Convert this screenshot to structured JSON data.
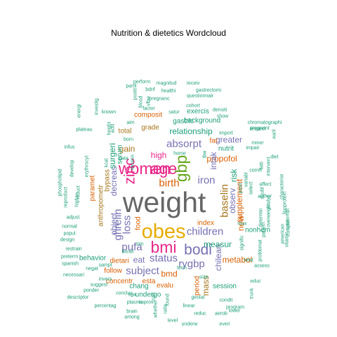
{
  "chart_data": {
    "type": "wordcloud",
    "title": "Nutrition & dietetics  Wordcloud",
    "palette": [
      "#1B9E77",
      "#D95F02",
      "#7570B3",
      "#E7298A",
      "#66A61E",
      "#E6AB02",
      "#A6761D",
      "#666666"
    ],
    "words": [
      {
        "text": "weight",
        "tier": 8
      },
      {
        "text": "obes",
        "tier": 7
      },
      {
        "text": "bmi",
        "tier": 6
      },
      {
        "text": "gbp",
        "tier": 6
      },
      {
        "text": "age",
        "tier": 6
      },
      {
        "text": "women",
        "tier": 6
      },
      {
        "text": "zinc",
        "tier": 5
      },
      {
        "text": "bodi",
        "tier": 5
      },
      {
        "text": "children",
        "tier": 4
      },
      {
        "text": "iron",
        "tier": 4
      },
      {
        "text": "absorpt",
        "tier": 4
      },
      {
        "text": "loss",
        "tier": 4
      },
      {
        "text": "pufa",
        "tier": 4
      },
      {
        "text": "ghrelin",
        "tier": 4
      },
      {
        "text": "rygbp",
        "tier": 4
      },
      {
        "text": "baselin",
        "tier": 4
      },
      {
        "text": "status",
        "tier": 4
      },
      {
        "text": "subject",
        "tier": 4
      },
      {
        "text": "birth",
        "tier": 4
      },
      {
        "text": "propofol",
        "tier": 3
      },
      {
        "text": "supplement",
        "tier": 3
      },
      {
        "text": "relationship",
        "tier": 3
      },
      {
        "text": "decreas",
        "tier": 3
      },
      {
        "text": "surgeri",
        "tier": 3
      },
      {
        "text": "intak",
        "tier": 3
      },
      {
        "text": "observ",
        "tier": 3
      },
      {
        "text": "gain",
        "tier": 3
      },
      {
        "text": "high",
        "tier": 3
      },
      {
        "text": "eat",
        "tier": 3
      },
      {
        "text": "chilean",
        "tier": 3
      },
      {
        "text": "bmd",
        "tier": 3
      },
      {
        "text": "object",
        "tier": 3
      },
      {
        "text": "mass",
        "tier": 3
      },
      {
        "text": "measur",
        "tier": 3
      },
      {
        "text": "metabol",
        "tier": 3
      },
      {
        "text": "risk",
        "tier": 3
      },
      {
        "text": "new",
        "tier": 3
      },
      {
        "text": "greater",
        "tier": 3
      },
      {
        "text": "gastric",
        "tier": 2
      },
      {
        "text": "grade",
        "tier": 2
      },
      {
        "text": "total",
        "tier": 2
      },
      {
        "text": "serum",
        "tier": 2
      },
      {
        "text": "bypass",
        "tier": 2
      },
      {
        "text": "dietari",
        "tier": 2
      },
      {
        "text": "follow",
        "tier": 2
      },
      {
        "text": "concentr",
        "tier": 2
      },
      {
        "text": "evalu",
        "tier": 2
      },
      {
        "text": "esta",
        "tier": 2
      },
      {
        "text": "index",
        "tier": 2
      },
      {
        "text": "composit",
        "tier": 2
      },
      {
        "text": "session",
        "tier": 2
      },
      {
        "text": "anthropometr",
        "tier": 2
      },
      {
        "text": "paramet",
        "tier": 2
      },
      {
        "text": "food",
        "tier": 2
      },
      {
        "text": "period",
        "tier": 2
      },
      {
        "text": "nutrit",
        "tier": 2
      },
      {
        "text": "fat",
        "tier": 2
      },
      {
        "text": "nonhem",
        "tier": 2
      },
      {
        "text": "chang",
        "tier": 2
      },
      {
        "text": "undergo",
        "tier": 2
      },
      {
        "text": "behavior",
        "tier": 2
      },
      {
        "text": "background",
        "tier": 2
      },
      {
        "text": "exercis",
        "tier": 2
      },
      {
        "text": "factor",
        "tier": 1
      },
      {
        "text": "pregnanc",
        "tier": 1
      },
      {
        "text": "cohort",
        "tier": 1
      },
      {
        "text": "questionnair",
        "tier": 1
      },
      {
        "text": "show",
        "tier": 1
      },
      {
        "text": "import",
        "tier": 1
      },
      {
        "text": "densiti",
        "tier": 1
      },
      {
        "text": "healthi",
        "tier": 1
      },
      {
        "text": "bdnf",
        "tier": 1
      },
      {
        "text": "gastrectomi",
        "tier": 1
      },
      {
        "text": "receiv",
        "tier": 1
      },
      {
        "text": "magnitud",
        "tier": 1
      },
      {
        "text": "perform",
        "tier": 1
      },
      {
        "text": "partil",
        "tier": 1
      },
      {
        "text": "postit",
        "tier": 1
      },
      {
        "text": "vlbw",
        "tier": 1
      },
      {
        "text": "satur",
        "tier": 1
      },
      {
        "text": "known",
        "tier": 1
      },
      {
        "text": "aim",
        "tier": 1
      },
      {
        "text": "born",
        "tier": 1
      },
      {
        "text": "data",
        "tier": 1
      },
      {
        "text": "excess",
        "tier": 1
      },
      {
        "text": "acid",
        "tier": 1
      },
      {
        "text": "height",
        "tier": 1
      },
      {
        "text": "plateau",
        "tier": 1
      },
      {
        "text": "investig",
        "tier": 1
      },
      {
        "text": "infus",
        "tier": 1
      },
      {
        "text": "develop",
        "tier": 1
      },
      {
        "text": "erythrocyt",
        "tier": 1
      },
      {
        "text": "phospholipid",
        "tier": 1
      },
      {
        "text": "reproduct",
        "tier": 1
      },
      {
        "text": "reduct",
        "tier": 1
      },
      {
        "text": "adjust",
        "tier": 1
      },
      {
        "text": "normal",
        "tier": 1
      },
      {
        "text": "popul",
        "tier": 1
      },
      {
        "text": "design",
        "tier": 1
      },
      {
        "text": "restrain",
        "tier": 1
      },
      {
        "text": "preterm",
        "tier": 1
      },
      {
        "text": "spanish",
        "tier": 1
      },
      {
        "text": "negat",
        "tier": 1
      },
      {
        "text": "necessari",
        "tier": 1
      },
      {
        "text": "suggest",
        "tier": 1
      },
      {
        "text": "ponder",
        "tier": 1
      },
      {
        "text": "descriptor",
        "tier": 1
      },
      {
        "text": "percentag",
        "tier": 1
      },
      {
        "text": "brain",
        "tier": 1
      },
      {
        "text": "plasma",
        "tier": 1
      },
      {
        "text": "among",
        "tier": 1
      },
      {
        "text": "improv",
        "tier": 1
      },
      {
        "text": "conclus",
        "tier": 1
      },
      {
        "text": "sga",
        "tier": 1
      },
      {
        "text": "sampl",
        "tier": 1
      },
      {
        "text": "invers",
        "tier": 1
      },
      {
        "text": "whether",
        "tier": 1
      },
      {
        "text": "found",
        "tier": 1
      },
      {
        "text": "linear",
        "tier": 1
      },
      {
        "text": "underw",
        "tier": 1
      },
      {
        "text": "reduc",
        "tier": 1
      },
      {
        "text": "everi",
        "tier": 1
      },
      {
        "text": "gestat",
        "tier": 1
      },
      {
        "text": "aerob",
        "tier": 1
      },
      {
        "text": "lower",
        "tier": 1
      },
      {
        "text": "condit",
        "tier": 1
      },
      {
        "text": "program",
        "tier": 1
      },
      {
        "text": "trunk",
        "tier": 1
      },
      {
        "text": "educ",
        "tier": 1
      },
      {
        "text": "assess",
        "tier": 1
      },
      {
        "text": "relat",
        "tier": 1
      },
      {
        "text": "signific",
        "tier": 1
      },
      {
        "text": "correl",
        "tier": 1
      },
      {
        "text": "impair",
        "tier": 1
      },
      {
        "text": "miner",
        "tier": 1
      },
      {
        "text": "respect",
        "tier": 1
      },
      {
        "text": "pregnant",
        "tier": 1
      },
      {
        "text": "chromatographi",
        "tier": 1
      },
      {
        "text": "affect",
        "tier": 1
      },
      {
        "text": "author",
        "tier": 1
      },
      {
        "text": "determin",
        "tier": 1
      },
      {
        "text": "overweight",
        "tier": 1
      },
      {
        "text": "pattern",
        "tier": 1
      },
      {
        "text": "problemat",
        "tier": 1
      },
      {
        "text": "american",
        "tier": 1
      },
      {
        "text": "vitamin",
        "tier": 1
      },
      {
        "text": "complet",
        "tier": 1
      },
      {
        "text": "consumpt",
        "tier": 1
      },
      {
        "text": "lipoprotein",
        "tier": 1
      },
      {
        "text": "characterist",
        "tier": 1
      },
      {
        "text": "diet",
        "tier": 1
      },
      {
        "text": "size",
        "tier": 1
      },
      {
        "text": "roux",
        "tier": 1
      },
      {
        "text": "term",
        "tier": 1
      },
      {
        "text": "min",
        "tier": 1
      },
      {
        "text": "bonel",
        "tier": 1
      },
      {
        "text": "tbw",
        "tier": 1
      },
      {
        "text": "home",
        "tier": 1
      },
      {
        "text": "earli",
        "tier": 1
      },
      {
        "text": "fatti",
        "tier": 1
      },
      {
        "text": "doubl",
        "tier": 1
      },
      {
        "text": "intervent",
        "tier": 1
      },
      {
        "text": "variabl",
        "tier": 1
      },
      {
        "text": "posit",
        "tier": 1
      },
      {
        "text": "analyz",
        "tier": 1
      },
      {
        "text": "select",
        "tier": 1
      },
      {
        "text": "cost",
        "tier": 1
      },
      {
        "text": "level",
        "tier": 1
      },
      {
        "text": "kcal",
        "tier": 1
      },
      {
        "text": "higher",
        "tier": 1
      },
      {
        "text": "ratio",
        "tier": 1
      },
      {
        "text": "energi",
        "tier": 1
      },
      {
        "text": "blood",
        "tier": 1
      },
      {
        "text": "trial",
        "tier": 1
      },
      {
        "text": "standard",
        "tier": 1
      },
      {
        "text": "character",
        "tier": 1
      }
    ]
  }
}
